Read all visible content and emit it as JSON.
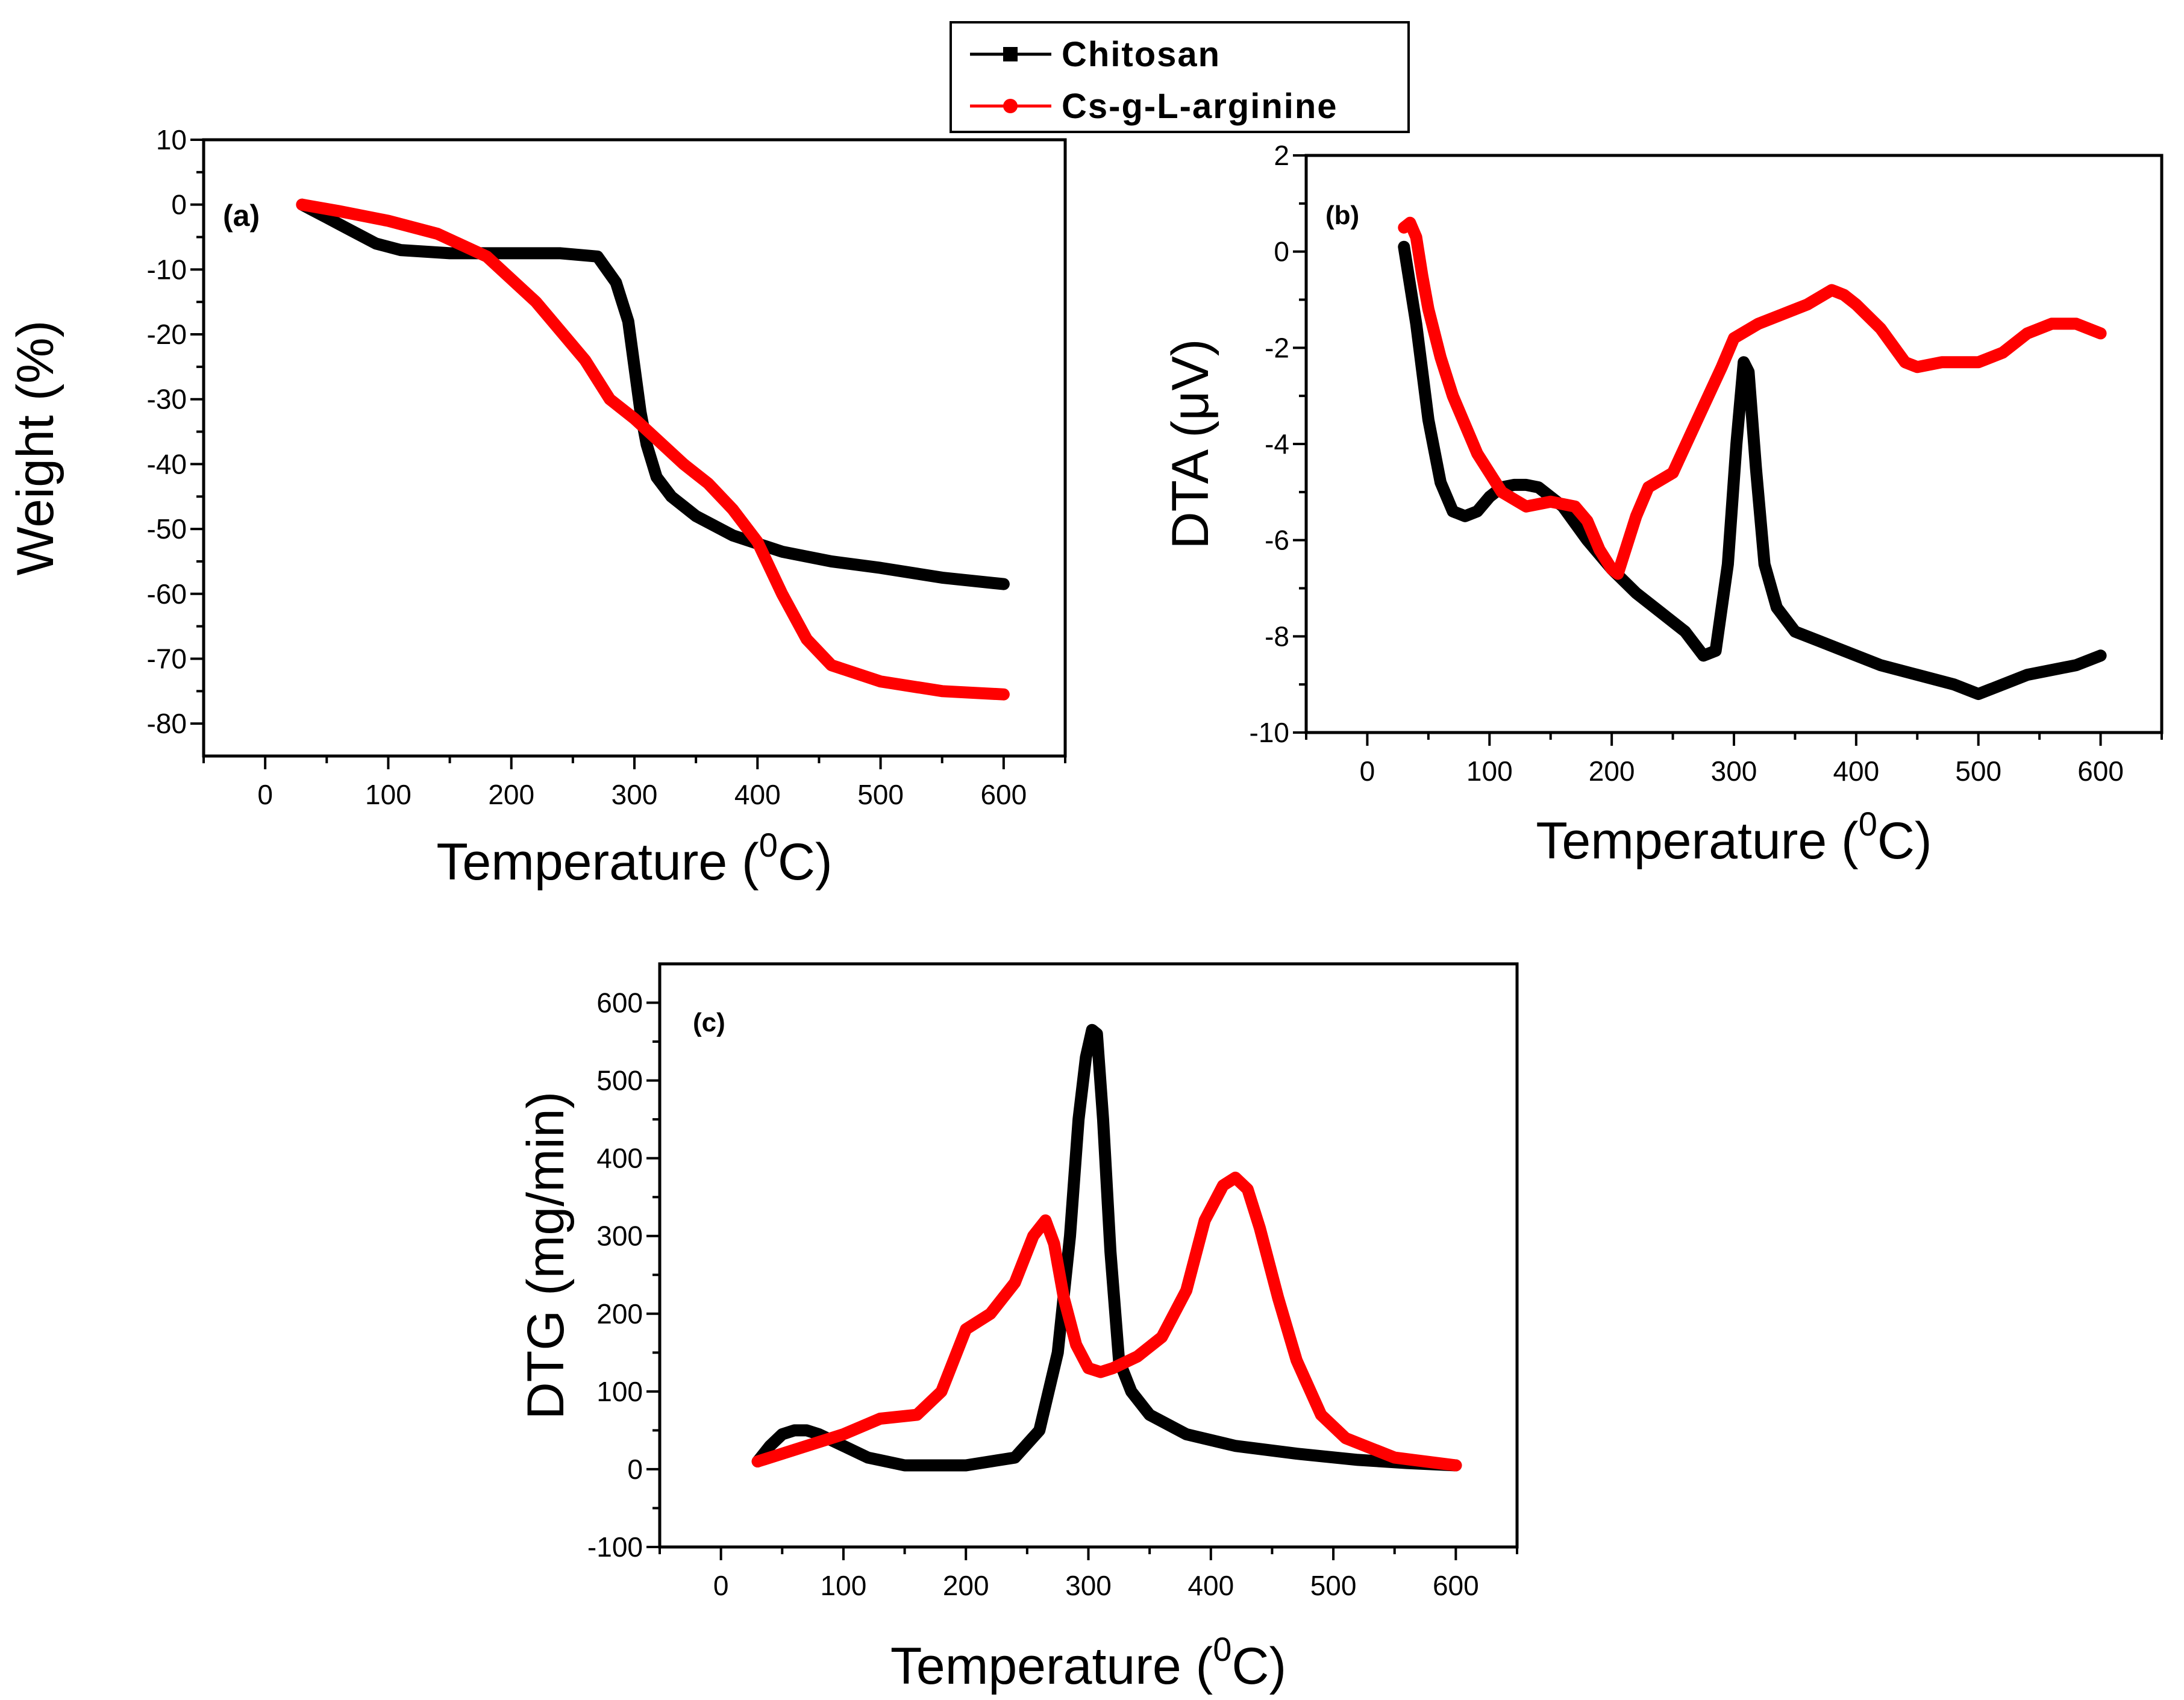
{
  "legend": {
    "entries": [
      {
        "label": "Chitosan",
        "color": "#000000"
      },
      {
        "label": "Cs-g-L-arginine",
        "color": "#ff0000"
      }
    ]
  },
  "chart_data": [
    {
      "id": "a",
      "type": "line",
      "panel_label": "(a)",
      "xlabel": "Temperature (",
      "xlabel_sup": "0",
      "xlabel_unit": "C)",
      "ylabel": "Weight (%)",
      "xlim": [
        -50,
        650
      ],
      "ylim": [
        -85,
        10
      ],
      "xticks": [
        0,
        100,
        200,
        300,
        400,
        500,
        600
      ],
      "yticks": [
        10,
        0,
        -10,
        -20,
        -30,
        -40,
        -50,
        -60,
        -70,
        -80
      ],
      "series": [
        {
          "name": "Chitosan",
          "color": "#000000",
          "x": [
            30,
            50,
            70,
            90,
            110,
            150,
            200,
            240,
            270,
            285,
            295,
            300,
            305,
            310,
            318,
            330,
            350,
            380,
            420,
            460,
            500,
            550,
            600
          ],
          "y": [
            0,
            -2,
            -4,
            -6,
            -7,
            -7.5,
            -7.5,
            -7.5,
            -8,
            -12,
            -18,
            -25,
            -32,
            -37,
            -42,
            -45,
            -48,
            -51,
            -53.5,
            -55,
            -56,
            -57.5,
            -58.5
          ]
        },
        {
          "name": "Cs-g-L-arginine",
          "color": "#ff0000",
          "x": [
            30,
            60,
            100,
            140,
            180,
            220,
            260,
            280,
            300,
            320,
            340,
            360,
            380,
            400,
            420,
            440,
            460,
            500,
            550,
            600
          ],
          "y": [
            0,
            -1,
            -2.5,
            -4.5,
            -8,
            -15,
            -24,
            -30,
            -33,
            -36.5,
            -40,
            -43,
            -47,
            -52,
            -60,
            -67,
            -71,
            -73.5,
            -75,
            -75.5
          ]
        }
      ]
    },
    {
      "id": "b",
      "type": "line",
      "panel_label": "(b)",
      "xlabel": "Temperature (",
      "xlabel_sup": "0",
      "xlabel_unit": "C)",
      "ylabel": "DTA (μV)",
      "xlim": [
        -50,
        650
      ],
      "ylim": [
        -10,
        2
      ],
      "xticks": [
        0,
        100,
        200,
        300,
        400,
        500,
        600
      ],
      "yticks": [
        2,
        0,
        -2,
        -4,
        -6,
        -8,
        -10
      ],
      "series": [
        {
          "name": "Chitosan",
          "color": "#000000",
          "x": [
            30,
            40,
            50,
            60,
            70,
            80,
            90,
            100,
            110,
            120,
            130,
            140,
            160,
            180,
            200,
            220,
            240,
            260,
            275,
            285,
            295,
            302,
            308,
            312,
            318,
            325,
            335,
            350,
            370,
            390,
            420,
            450,
            480,
            500,
            520,
            540,
            560,
            580,
            600
          ],
          "y": [
            0.1,
            -1.5,
            -3.5,
            -4.8,
            -5.4,
            -5.5,
            -5.4,
            -5.1,
            -4.9,
            -4.85,
            -4.85,
            -4.9,
            -5.3,
            -6.0,
            -6.6,
            -7.1,
            -7.5,
            -7.9,
            -8.4,
            -8.3,
            -6.5,
            -4.0,
            -2.3,
            -2.5,
            -4.5,
            -6.5,
            -7.4,
            -7.9,
            -8.1,
            -8.3,
            -8.6,
            -8.8,
            -9.0,
            -9.2,
            -9.0,
            -8.8,
            -8.7,
            -8.6,
            -8.4
          ]
        },
        {
          "name": "Cs-g-L-arginine",
          "color": "#ff0000",
          "x": [
            30,
            35,
            40,
            45,
            50,
            60,
            70,
            90,
            110,
            130,
            150,
            170,
            180,
            190,
            200,
            205,
            210,
            220,
            230,
            250,
            270,
            290,
            300,
            320,
            340,
            360,
            380,
            390,
            400,
            420,
            440,
            450,
            470,
            500,
            520,
            540,
            560,
            580,
            600
          ],
          "y": [
            0.5,
            0.6,
            0.3,
            -0.5,
            -1.2,
            -2.2,
            -3.0,
            -4.2,
            -5.0,
            -5.3,
            -5.2,
            -5.3,
            -5.6,
            -6.2,
            -6.6,
            -6.7,
            -6.3,
            -5.5,
            -4.9,
            -4.6,
            -3.5,
            -2.4,
            -1.8,
            -1.5,
            -1.3,
            -1.1,
            -0.8,
            -0.9,
            -1.1,
            -1.6,
            -2.3,
            -2.4,
            -2.3,
            -2.3,
            -2.1,
            -1.7,
            -1.5,
            -1.5,
            -1.7
          ]
        }
      ]
    },
    {
      "id": "c",
      "type": "line",
      "panel_label": "(c)",
      "xlabel": "Temperature (",
      "xlabel_sup": "0",
      "xlabel_unit": "C)",
      "ylabel": "DTG (mg/min)",
      "xlim": [
        -50,
        650
      ],
      "ylim": [
        -100,
        650
      ],
      "xticks": [
        0,
        100,
        200,
        300,
        400,
        500,
        600
      ],
      "yticks": [
        600,
        500,
        400,
        300,
        200,
        100,
        0,
        -100
      ],
      "series": [
        {
          "name": "Chitosan",
          "color": "#000000",
          "x": [
            30,
            40,
            50,
            60,
            70,
            80,
            100,
            120,
            150,
            200,
            240,
            260,
            275,
            285,
            292,
            298,
            303,
            307,
            312,
            318,
            325,
            335,
            350,
            380,
            420,
            470,
            520,
            560,
            600
          ],
          "y": [
            10,
            30,
            45,
            50,
            50,
            45,
            30,
            15,
            5,
            5,
            15,
            50,
            150,
            300,
            450,
            530,
            565,
            560,
            450,
            280,
            140,
            100,
            70,
            45,
            30,
            20,
            12,
            8,
            5
          ]
        },
        {
          "name": "Cs-g-L-arginine",
          "color": "#ff0000",
          "x": [
            30,
            60,
            100,
            130,
            160,
            180,
            200,
            220,
            240,
            255,
            265,
            272,
            280,
            290,
            300,
            310,
            320,
            340,
            360,
            380,
            395,
            410,
            420,
            430,
            440,
            455,
            470,
            490,
            510,
            550,
            600
          ],
          "y": [
            10,
            25,
            45,
            65,
            70,
            100,
            180,
            200,
            240,
            300,
            320,
            290,
            220,
            160,
            130,
            125,
            130,
            145,
            170,
            230,
            320,
            365,
            375,
            360,
            310,
            220,
            140,
            70,
            40,
            15,
            5
          ]
        }
      ]
    }
  ]
}
